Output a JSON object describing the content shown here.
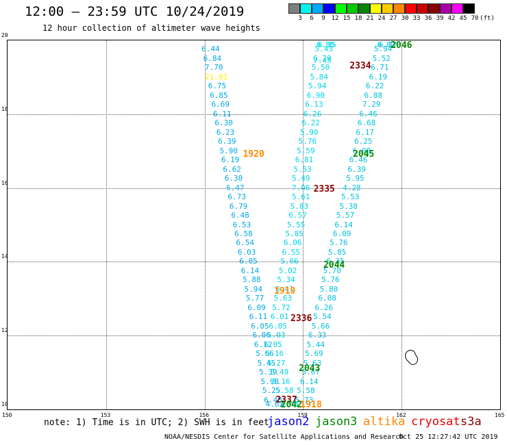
{
  "title": "12:00 – 23:59 UTC 10/24/2019",
  "subtitle": "12 hour collection of altimeter wave heights",
  "legend": {
    "unit_label": "(ft)",
    "steps": [
      {
        "label": "3",
        "color": "#7f7f7f"
      },
      {
        "label": "6",
        "color": "#00f5f5"
      },
      {
        "label": "9",
        "color": "#00aaff"
      },
      {
        "label": "12",
        "color": "#0000ff"
      },
      {
        "label": "15",
        "color": "#00ff00"
      },
      {
        "label": "18",
        "color": "#00cc00"
      },
      {
        "label": "21",
        "color": "#008800"
      },
      {
        "label": "24",
        "color": "#ffff00"
      },
      {
        "label": "27",
        "color": "#ffcc00"
      },
      {
        "label": "30",
        "color": "#ff8800"
      },
      {
        "label": "33",
        "color": "#ff0000"
      },
      {
        "label": "36",
        "color": "#cc0000"
      },
      {
        "label": "39",
        "color": "#880000"
      },
      {
        "label": "42",
        "color": "#aa00aa"
      },
      {
        "label": "45",
        "color": "#ff00ff"
      },
      {
        "label": "70",
        "color": "#000000"
      }
    ]
  },
  "map": {
    "lon_ticks": [
      "150",
      "153",
      "156",
      "159",
      "162",
      "165"
    ],
    "lat_ticks": [
      "10",
      "12",
      "14",
      "16",
      "18",
      "20"
    ],
    "lon_range": [
      150,
      165
    ],
    "lat_range": [
      10,
      20
    ]
  },
  "tracks": [
    {
      "id": "track-a",
      "color": "#00a8e8",
      "points": [
        {
          "lon": 156.2,
          "lat": 19.75,
          "v": "6.44"
        },
        {
          "lon": 156.25,
          "lat": 19.5,
          "v": "6.84"
        },
        {
          "lon": 156.3,
          "lat": 19.25,
          "v": "7.70"
        },
        {
          "lon": 156.4,
          "lat": 18.75,
          "v": "6.75"
        },
        {
          "lon": 156.45,
          "lat": 18.5,
          "v": "6.85"
        },
        {
          "lon": 156.5,
          "lat": 18.25,
          "v": "6.69"
        },
        {
          "lon": 156.55,
          "lat": 18.0,
          "v": "6.11"
        },
        {
          "lon": 156.6,
          "lat": 17.75,
          "v": "6.30"
        },
        {
          "lon": 156.65,
          "lat": 17.5,
          "v": "6.23"
        },
        {
          "lon": 156.7,
          "lat": 17.25,
          "v": "6.39"
        },
        {
          "lon": 156.75,
          "lat": 17.0,
          "v": "5.90"
        },
        {
          "lon": 156.8,
          "lat": 16.75,
          "v": "6.19"
        },
        {
          "lon": 156.85,
          "lat": 16.5,
          "v": "6.62"
        },
        {
          "lon": 156.9,
          "lat": 16.25,
          "v": "6.30"
        },
        {
          "lon": 156.95,
          "lat": 16.0,
          "v": "6.47"
        },
        {
          "lon": 157.0,
          "lat": 15.75,
          "v": "6.73"
        },
        {
          "lon": 157.05,
          "lat": 15.5,
          "v": "6.79"
        },
        {
          "lon": 157.1,
          "lat": 15.25,
          "v": "6.48"
        },
        {
          "lon": 157.15,
          "lat": 15.0,
          "v": "6.53"
        },
        {
          "lon": 157.2,
          "lat": 14.75,
          "v": "6.58"
        },
        {
          "lon": 157.25,
          "lat": 14.5,
          "v": "6.54"
        },
        {
          "lon": 157.3,
          "lat": 14.25,
          "v": "6.03"
        },
        {
          "lon": 157.35,
          "lat": 14.0,
          "v": "6.05"
        },
        {
          "lon": 157.4,
          "lat": 13.75,
          "v": "6.14"
        },
        {
          "lon": 157.45,
          "lat": 13.5,
          "v": "5.88"
        },
        {
          "lon": 157.5,
          "lat": 13.25,
          "v": "5.94"
        },
        {
          "lon": 157.55,
          "lat": 13.0,
          "v": "5.77"
        },
        {
          "lon": 157.6,
          "lat": 12.75,
          "v": "6.09"
        },
        {
          "lon": 157.65,
          "lat": 12.5,
          "v": "6.11"
        },
        {
          "lon": 157.7,
          "lat": 12.25,
          "v": "6.05"
        },
        {
          "lon": 157.75,
          "lat": 12.0,
          "v": "6.06"
        },
        {
          "lon": 157.8,
          "lat": 11.75,
          "v": "6.12"
        },
        {
          "lon": 157.85,
          "lat": 11.5,
          "v": "5.66"
        },
        {
          "lon": 157.9,
          "lat": 11.25,
          "v": "5.45"
        },
        {
          "lon": 157.95,
          "lat": 11.0,
          "v": "5.39"
        },
        {
          "lon": 158.0,
          "lat": 10.75,
          "v": "5.98"
        },
        {
          "lon": 158.05,
          "lat": 10.5,
          "v": "5.25"
        },
        {
          "lon": 158.1,
          "lat": 10.25,
          "v": "6.48"
        },
        {
          "lon": 158.15,
          "lat": 10.05,
          "v": "4.62"
        }
      ]
    },
    {
      "id": "track-b",
      "color": "#00d5e8",
      "points": [
        {
          "lon": 158.6,
          "lat": 10.1,
          "v": "6.48"
        },
        {
          "lon": 158.45,
          "lat": 10.5,
          "v": "5.58"
        },
        {
          "lon": 158.35,
          "lat": 10.75,
          "v": "5.16"
        },
        {
          "lon": 158.3,
          "lat": 11.0,
          "v": "5.49"
        },
        {
          "lon": 158.2,
          "lat": 11.25,
          "v": "5.27"
        },
        {
          "lon": 158.15,
          "lat": 11.5,
          "v": "5.16"
        },
        {
          "lon": 158.1,
          "lat": 11.75,
          "v": "6.05"
        },
        {
          "lon": 158.2,
          "lat": 12.0,
          "v": "5.03"
        },
        {
          "lon": 158.25,
          "lat": 12.25,
          "v": "6.05"
        },
        {
          "lon": 158.3,
          "lat": 12.5,
          "v": "6.01"
        },
        {
          "lon": 158.35,
          "lat": 12.75,
          "v": "5.72"
        },
        {
          "lon": 158.4,
          "lat": 13.0,
          "v": "5.63"
        },
        {
          "lon": 158.45,
          "lat": 13.25,
          "v": "6.41"
        },
        {
          "lon": 158.5,
          "lat": 13.5,
          "v": "5.34"
        },
        {
          "lon": 158.55,
          "lat": 13.75,
          "v": "5.02"
        },
        {
          "lon": 158.6,
          "lat": 14.0,
          "v": "5.66"
        },
        {
          "lon": 158.65,
          "lat": 14.25,
          "v": "6.55"
        },
        {
          "lon": 158.7,
          "lat": 14.5,
          "v": "6.06"
        },
        {
          "lon": 158.75,
          "lat": 14.75,
          "v": "5.85"
        },
        {
          "lon": 158.8,
          "lat": 15.0,
          "v": "5.55"
        },
        {
          "lon": 158.85,
          "lat": 15.25,
          "v": "6.57"
        },
        {
          "lon": 158.9,
          "lat": 15.5,
          "v": "5.83"
        },
        {
          "lon": 158.95,
          "lat": 15.75,
          "v": "5.61"
        },
        {
          "lon": 158.95,
          "lat": 16.0,
          "v": "7.06"
        },
        {
          "lon": 158.95,
          "lat": 16.25,
          "v": "5.49"
        },
        {
          "lon": 159.0,
          "lat": 16.5,
          "v": "5.53"
        },
        {
          "lon": 159.05,
          "lat": 16.75,
          "v": "6.81"
        },
        {
          "lon": 159.1,
          "lat": 17.0,
          "v": "5.59"
        },
        {
          "lon": 159.15,
          "lat": 17.25,
          "v": "5.76"
        },
        {
          "lon": 159.2,
          "lat": 17.5,
          "v": "5.90"
        },
        {
          "lon": 159.25,
          "lat": 17.75,
          "v": "6.22"
        },
        {
          "lon": 159.3,
          "lat": 18.0,
          "v": "6.26"
        },
        {
          "lon": 159.35,
          "lat": 18.25,
          "v": "6.13"
        },
        {
          "lon": 159.4,
          "lat": 18.5,
          "v": "6.90"
        },
        {
          "lon": 159.45,
          "lat": 18.75,
          "v": "5.94"
        },
        {
          "lon": 159.5,
          "lat": 19.0,
          "v": "5.84"
        },
        {
          "lon": 159.55,
          "lat": 19.25,
          "v": "5.50"
        },
        {
          "lon": 159.6,
          "lat": 19.45,
          "v": "7.45"
        },
        {
          "lon": 159.6,
          "lat": 19.5,
          "v": "6.79"
        },
        {
          "lon": 159.65,
          "lat": 19.75,
          "v": "5.43"
        },
        {
          "lon": 159.7,
          "lat": 20.0,
          "v": "6.85"
        },
        {
          "lon": 159.75,
          "lat": 20.25,
          "v": "6.35"
        }
      ]
    },
    {
      "id": "track-c",
      "color": "#00c0e0",
      "points": [
        {
          "lon": 161.6,
          "lat": 20.25,
          "v": "6.32"
        },
        {
          "lon": 161.55,
          "lat": 20.0,
          "v": "6.82"
        },
        {
          "lon": 161.45,
          "lat": 19.75,
          "v": "5.94"
        },
        {
          "lon": 161.4,
          "lat": 19.5,
          "v": "5.52"
        },
        {
          "lon": 161.35,
          "lat": 19.25,
          "v": "6.71"
        },
        {
          "lon": 161.3,
          "lat": 19.0,
          "v": "6.19"
        },
        {
          "lon": 161.2,
          "lat": 18.75,
          "v": "6.22"
        },
        {
          "lon": 161.15,
          "lat": 18.5,
          "v": "6.88"
        },
        {
          "lon": 161.1,
          "lat": 18.25,
          "v": "7.29"
        },
        {
          "lon": 161.0,
          "lat": 18.0,
          "v": "6.46"
        },
        {
          "lon": 160.95,
          "lat": 17.75,
          "v": "6.68"
        },
        {
          "lon": 160.9,
          "lat": 17.5,
          "v": "6.17"
        },
        {
          "lon": 160.85,
          "lat": 17.25,
          "v": "6.25"
        },
        {
          "lon": 160.8,
          "lat": 17.0,
          "v": "6.98"
        },
        {
          "lon": 160.7,
          "lat": 16.75,
          "v": "6.46"
        },
        {
          "lon": 160.65,
          "lat": 16.5,
          "v": "6.39"
        },
        {
          "lon": 160.6,
          "lat": 16.25,
          "v": "5.95"
        },
        {
          "lon": 160.5,
          "lat": 16.0,
          "v": "4.28"
        },
        {
          "lon": 160.45,
          "lat": 15.75,
          "v": "5.53"
        },
        {
          "lon": 160.4,
          "lat": 15.5,
          "v": "5.38"
        },
        {
          "lon": 160.3,
          "lat": 15.25,
          "v": "5.57"
        },
        {
          "lon": 160.25,
          "lat": 15.0,
          "v": "6.14"
        },
        {
          "lon": 160.2,
          "lat": 14.75,
          "v": "6.09"
        },
        {
          "lon": 160.1,
          "lat": 14.5,
          "v": "5.76"
        },
        {
          "lon": 160.05,
          "lat": 14.25,
          "v": "5.85"
        },
        {
          "lon": 160.0,
          "lat": 14.0,
          "v": "6.35"
        },
        {
          "lon": 159.9,
          "lat": 13.75,
          "v": "5.70"
        },
        {
          "lon": 159.85,
          "lat": 13.5,
          "v": "5.76"
        },
        {
          "lon": 159.8,
          "lat": 13.25,
          "v": "5.80"
        },
        {
          "lon": 159.75,
          "lat": 13.0,
          "v": "6.08"
        },
        {
          "lon": 159.65,
          "lat": 12.75,
          "v": "6.26"
        },
        {
          "lon": 159.6,
          "lat": 12.5,
          "v": "5.54"
        },
        {
          "lon": 159.55,
          "lat": 12.25,
          "v": "5.66"
        },
        {
          "lon": 159.45,
          "lat": 12.0,
          "v": "6.33"
        },
        {
          "lon": 159.4,
          "lat": 11.75,
          "v": "5.44"
        },
        {
          "lon": 159.35,
          "lat": 11.5,
          "v": "5.69"
        },
        {
          "lon": 159.3,
          "lat": 11.25,
          "v": "5.63"
        },
        {
          "lon": 159.25,
          "lat": 11.0,
          "v": "5.67"
        },
        {
          "lon": 159.2,
          "lat": 10.75,
          "v": "6.14"
        },
        {
          "lon": 159.1,
          "lat": 10.5,
          "v": "5.58"
        },
        {
          "lon": 159.05,
          "lat": 10.25,
          "v": "5.73"
        }
      ]
    }
  ],
  "highlight_values": [
    {
      "lon": 156.3,
      "lat": 19.0,
      "v": "21.81",
      "color": "#ffee00"
    }
  ],
  "pass_labels": [
    {
      "lon": 161.75,
      "lat": 19.95,
      "text": "2046",
      "color": "#008800"
    },
    {
      "lon": 160.5,
      "lat": 19.3,
      "text": "2334",
      "color": "#880000"
    },
    {
      "lon": 157.25,
      "lat": 16.9,
      "text": "1920",
      "color": "#ff8800"
    },
    {
      "lon": 160.6,
      "lat": 16.9,
      "text": "2045",
      "color": "#008800"
    },
    {
      "lon": 159.4,
      "lat": 15.95,
      "text": "2335",
      "color": "#880000"
    },
    {
      "lon": 159.7,
      "lat": 13.9,
      "text": "2044",
      "color": "#008800"
    },
    {
      "lon": 158.2,
      "lat": 13.2,
      "text": "1919",
      "color": "#ff8800"
    },
    {
      "lon": 158.7,
      "lat": 12.45,
      "text": "2336",
      "color": "#880000"
    },
    {
      "lon": 158.95,
      "lat": 11.1,
      "text": "2043",
      "color": "#008800"
    },
    {
      "lon": 158.25,
      "lat": 10.25,
      "text": "2337",
      "color": "#880000"
    },
    {
      "lon": 158.4,
      "lat": 10.05,
      "text": "2042",
      "color": "#008800"
    },
    {
      "lon": 159.0,
      "lat": 10.0,
      "text": "1918",
      "color": "#ff8800"
    }
  ],
  "note": "note: 1) Time is in UTC; 2) SWH is in feet",
  "satellites": [
    {
      "name": "jason2",
      "color": "#0000ee"
    },
    {
      "name": "jason3",
      "color": "#008800"
    },
    {
      "name": "altika",
      "color": "#ff8800"
    },
    {
      "name": "cryosat",
      "color": "#ee0000"
    },
    {
      "name": "s3a",
      "color": "#880000"
    }
  ],
  "credit": "NOAA/NESDIS Center for Satellite Applications and Research",
  "timestamp": "Oct 25 12:27:42 UTC 2019"
}
